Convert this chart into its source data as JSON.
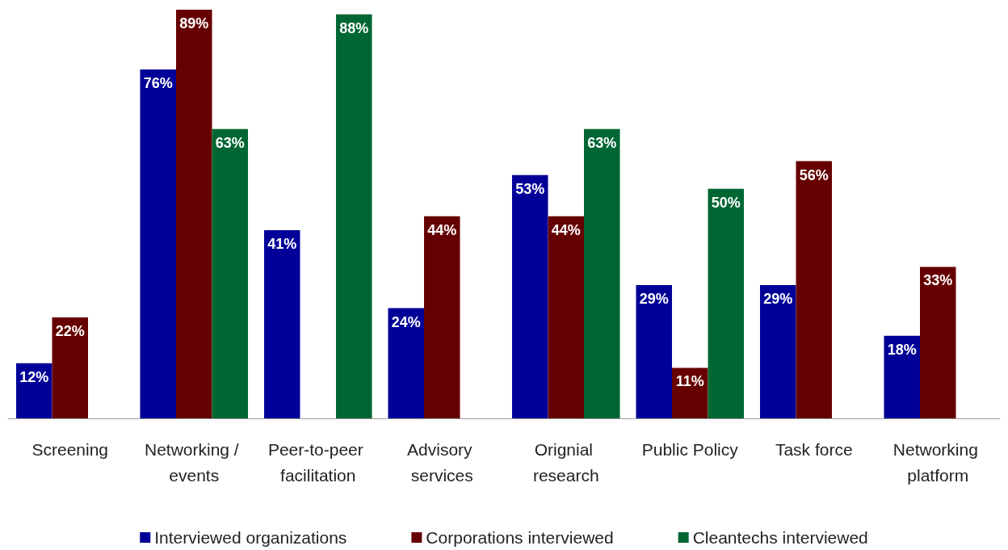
{
  "chart_data": {
    "type": "bar",
    "categories": [
      "Screening",
      "Networking / events",
      "Peer-to-peer facilitation",
      "Advisory services",
      "Orignial research",
      "Public Policy",
      "Task force",
      "Networking platform"
    ],
    "series": [
      {
        "name": "Interviewed organizations",
        "color": "#000099",
        "values": [
          12,
          76,
          41,
          24,
          53,
          29,
          29,
          18
        ],
        "value_labels": [
          "12%",
          "76%",
          "41%",
          "24%",
          "53%",
          "29%",
          "29%",
          "18%"
        ]
      },
      {
        "name": "Corporations interviewed",
        "color": "#660000",
        "values": [
          22,
          89,
          null,
          44,
          44,
          11,
          56,
          33
        ],
        "value_labels": [
          "22%",
          "89%",
          null,
          "44%",
          "44%",
          "11%",
          "56%",
          "33%"
        ]
      },
      {
        "name": "Cleantechs interviewed",
        "color": "#006633",
        "values": [
          null,
          63,
          88,
          null,
          63,
          50,
          null,
          null
        ],
        "value_labels": [
          null,
          "63%",
          "88%",
          null,
          "63%",
          "50%",
          null,
          null
        ]
      }
    ],
    "legend": "bottom"
  }
}
